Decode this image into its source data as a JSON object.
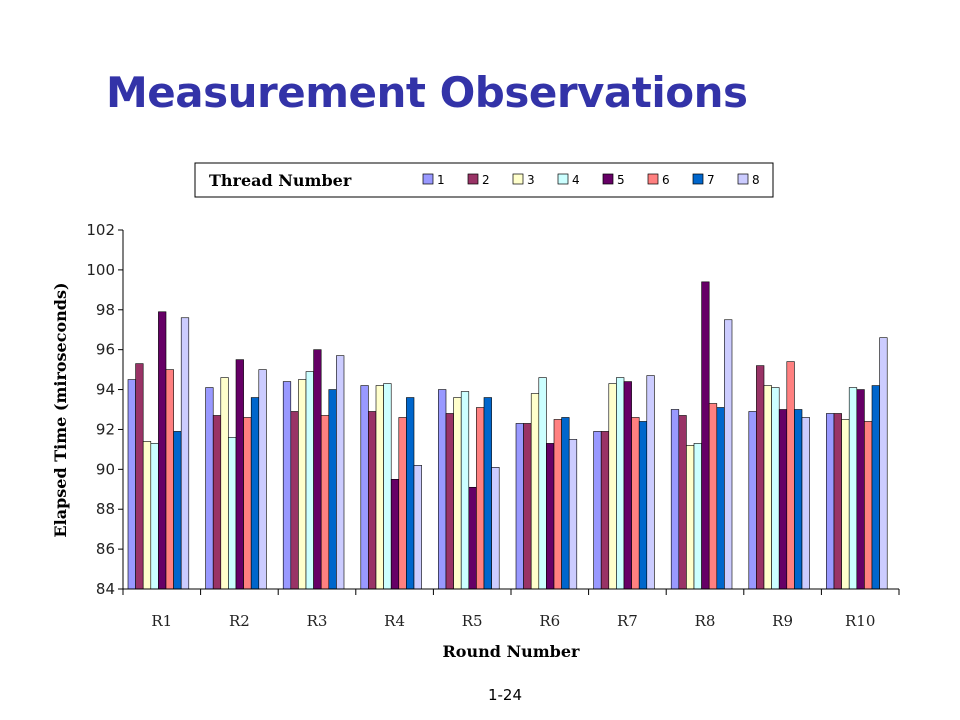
{
  "slide": {
    "title": "Measurement Observations",
    "page_number": "1-24"
  },
  "chart_data": {
    "type": "bar",
    "xlabel": "Round Number",
    "ylabel": "Elapsed Time (miroseconds)",
    "ylim": [
      84,
      102
    ],
    "yticks": [
      84,
      86,
      88,
      90,
      92,
      94,
      96,
      98,
      100,
      102
    ],
    "grid": false,
    "legend_title": "Thread Number",
    "legend_position": "top",
    "categories": [
      "R1",
      "R2",
      "R3",
      "R4",
      "R5",
      "R6",
      "R7",
      "R8",
      "R9",
      "R10"
    ],
    "series": [
      {
        "name": "1",
        "color": "#9999ff",
        "values": [
          94.5,
          94.1,
          94.4,
          94.2,
          94.0,
          92.3,
          91.9,
          93.0,
          92.9,
          92.8
        ]
      },
      {
        "name": "2",
        "color": "#993366",
        "values": [
          95.3,
          92.7,
          92.9,
          92.9,
          92.8,
          92.3,
          91.9,
          92.7,
          95.2,
          92.8
        ]
      },
      {
        "name": "3",
        "color": "#ffffcc",
        "values": [
          91.4,
          94.6,
          94.5,
          94.2,
          93.6,
          93.8,
          94.3,
          91.2,
          94.2,
          92.5
        ]
      },
      {
        "name": "4",
        "color": "#ccffff",
        "values": [
          91.3,
          91.6,
          94.9,
          94.3,
          93.9,
          94.6,
          94.6,
          91.3,
          94.1,
          94.1
        ]
      },
      {
        "name": "5",
        "color": "#660066",
        "values": [
          97.9,
          95.5,
          96.0,
          89.5,
          89.1,
          91.3,
          94.4,
          99.4,
          93.0,
          94.0
        ]
      },
      {
        "name": "6",
        "color": "#ff8080",
        "values": [
          95.0,
          92.6,
          92.7,
          92.6,
          93.1,
          92.5,
          92.6,
          93.3,
          95.4,
          92.4
        ]
      },
      {
        "name": "7",
        "color": "#0066cc",
        "values": [
          91.9,
          93.6,
          94.0,
          93.6,
          93.6,
          92.6,
          92.4,
          93.1,
          93.0,
          94.2
        ]
      },
      {
        "name": "8",
        "color": "#ccccff",
        "values": [
          97.6,
          95.0,
          95.7,
          90.2,
          90.1,
          91.5,
          94.7,
          97.5,
          92.6,
          96.6
        ]
      }
    ]
  }
}
